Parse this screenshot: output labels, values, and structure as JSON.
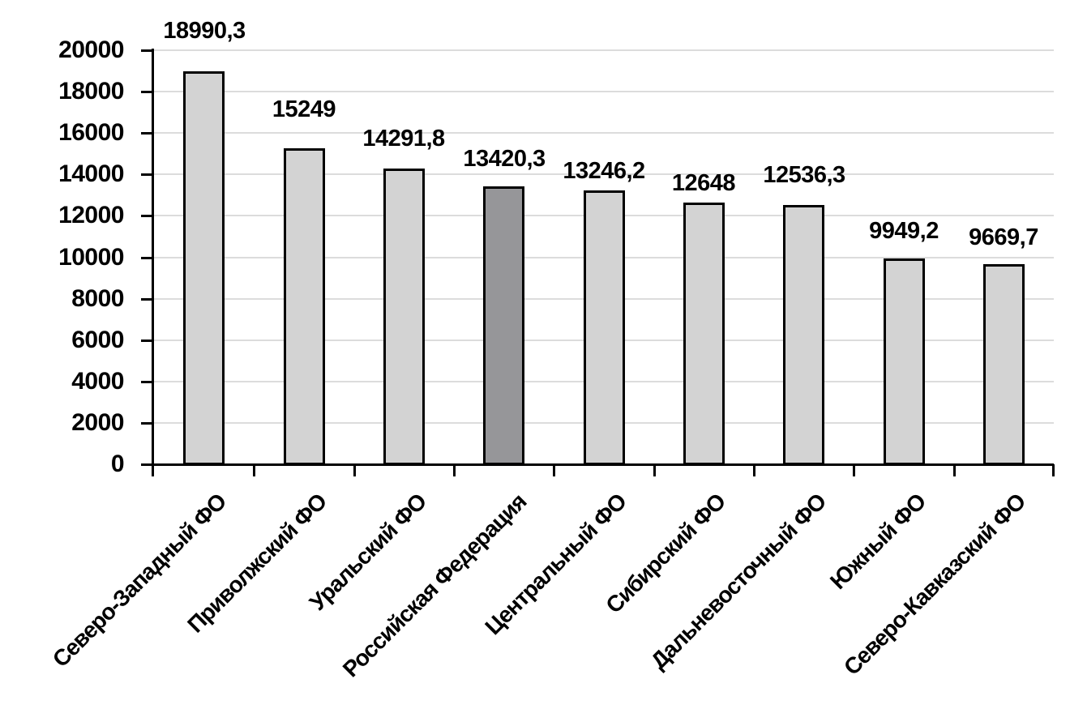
{
  "chart_data": {
    "type": "bar",
    "title": "",
    "xlabel": "",
    "ylabel": "",
    "categories": [
      "Северо-Западный ФО",
      "Приволжский ФО",
      "Уральский ФО",
      "Российская Федерация",
      "Центральный ФО",
      "Сибирский ФО",
      "Дальневосточный ФО",
      "Южный ФО",
      "Северо-Кавказский ФО"
    ],
    "values": [
      18990.3,
      15249,
      14291.8,
      13420.3,
      13246.2,
      12648,
      12536.3,
      9949.2,
      9669.7
    ],
    "data_labels": [
      "18990,3",
      "15249",
      "14291,8",
      "13420,3",
      "13246,2",
      "12648",
      "12536,3",
      "9949,2",
      "9669,7"
    ],
    "ylim": [
      0,
      20000
    ],
    "ytick_step": 2000,
    "ytick_labels": [
      "0",
      "2000",
      "4000",
      "6000",
      "8000",
      "10000",
      "12000",
      "14000",
      "16000",
      "18000",
      "20000"
    ],
    "grid": "horizontal",
    "legend": "none",
    "highlighted_category": "Российская Федерация",
    "highlight_index": 3,
    "colors": {
      "bar_fill": "#d3d3d3",
      "highlight_fill": "#969699",
      "bar_border": "#000000",
      "gridline": "#dcdcdc",
      "axis": "#000000",
      "text": "#000000",
      "background": "#ffffff"
    }
  }
}
